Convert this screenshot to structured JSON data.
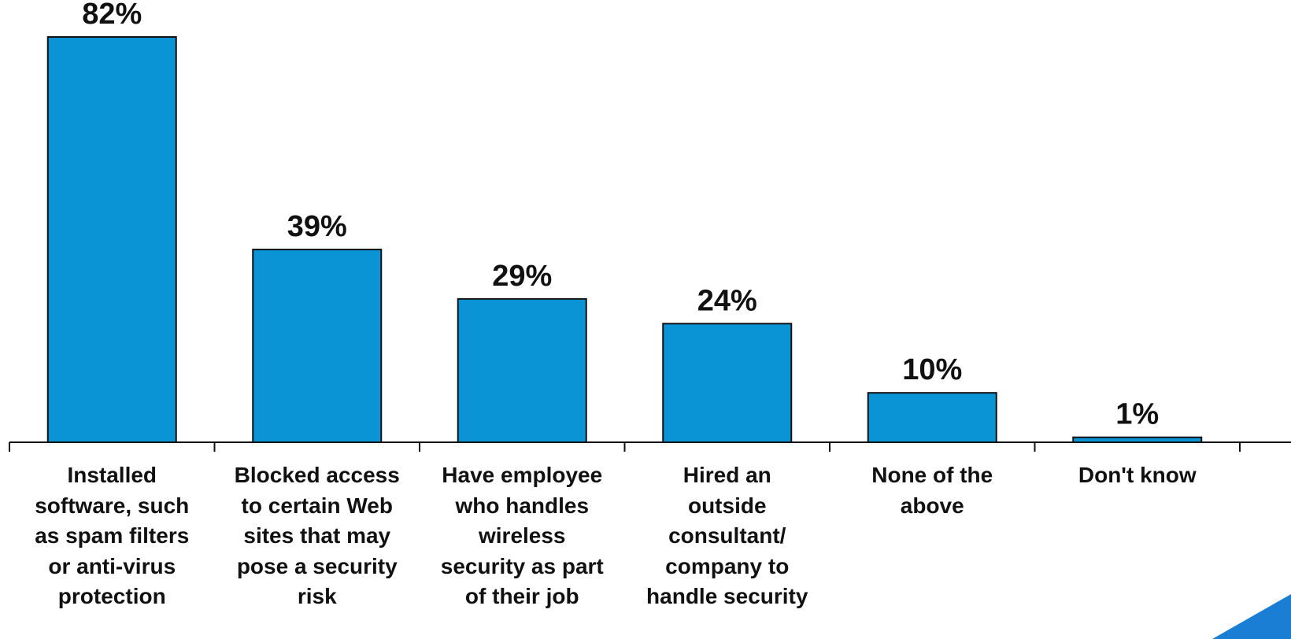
{
  "chart_data": {
    "type": "bar",
    "categories": [
      "Installed software, such as spam filters or anti-virus protection",
      "Blocked access to certain Web sites that may pose a security risk",
      "Have employee who handles wireless security as part of their job",
      "Hired an outside consultant/ company to handle security",
      "None of the above",
      "Don't know"
    ],
    "category_lines": [
      [
        "Installed",
        "software, such",
        "as spam filters",
        "or anti-virus",
        "protection"
      ],
      [
        "Blocked access",
        "to certain Web",
        "sites that may",
        "pose a security",
        "risk"
      ],
      [
        "Have employee",
        "who handles",
        "wireless",
        "security as part",
        "of their job"
      ],
      [
        "Hired an",
        "outside",
        "consultant/",
        "company to",
        "handle security"
      ],
      [
        "None of the",
        "above"
      ],
      [
        "Don't know"
      ]
    ],
    "values": [
      82,
      39,
      29,
      24,
      10,
      1
    ],
    "value_labels": [
      "82%",
      "39%",
      "29%",
      "24%",
      "10%",
      "1%"
    ],
    "ylim": [
      0,
      82
    ],
    "grid": false,
    "bar_color": "#0a94d6",
    "accent_color": "#1a7fd4"
  }
}
